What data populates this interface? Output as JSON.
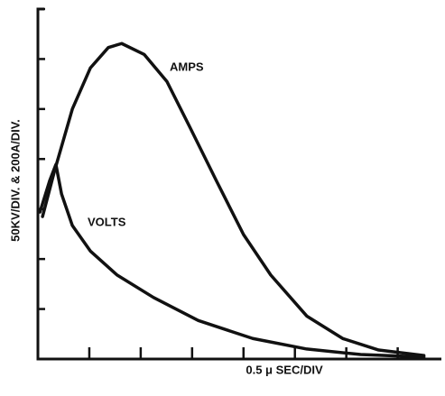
{
  "chart_data": {
    "type": "line",
    "xlabel": "0.5 μ SEC/DIV",
    "ylabel": "50KV/DIV. & 200A/DIV.",
    "xlim": [
      0,
      7.85
    ],
    "xticks": [
      1,
      2,
      3,
      4,
      5,
      6,
      7
    ],
    "ylim": [
      0,
      7
    ],
    "yticks": [
      1,
      2,
      3,
      4,
      5,
      6,
      7
    ],
    "series": [
      {
        "name": "AMPS",
        "color": "#111111",
        "x": [
          0.09,
          0.32,
          0.67,
          1.02,
          1.37,
          1.63,
          2.07,
          2.51,
          2.95,
          3.47,
          4.0,
          4.53,
          5.23,
          5.93,
          6.63,
          7.51
        ],
        "values": [
          2.85,
          3.75,
          5.0,
          5.82,
          6.23,
          6.31,
          6.09,
          5.55,
          4.65,
          3.57,
          2.49,
          1.68,
          0.86,
          0.41,
          0.18,
          0.07
        ]
      },
      {
        "name": "VOLTS",
        "color": "#111111",
        "x": [
          0.04,
          0.23,
          0.35,
          0.46,
          0.67,
          1.02,
          1.54,
          2.25,
          3.12,
          4.18,
          5.23,
          6.28,
          7.51
        ],
        "values": [
          2.94,
          3.57,
          3.89,
          3.3,
          2.67,
          2.16,
          1.68,
          1.23,
          0.77,
          0.41,
          0.2,
          0.09,
          0.04
        ]
      }
    ]
  }
}
